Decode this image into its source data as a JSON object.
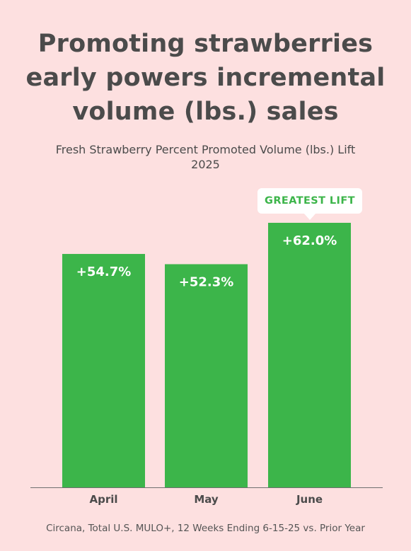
{
  "header": {
    "title_lines": [
      "Promoting strawberries",
      "early powers incremental",
      "volume (lbs.) sales"
    ],
    "subtitle_lines": [
      "Fresh Strawberry Percent Promoted Volume (lbs.) Lift",
      "2025"
    ]
  },
  "callout": {
    "label": "GREATEST LIFT"
  },
  "source": "Circana, Total U.S. MULO+, 12 Weeks Ending 6-15-25 vs. Prior Year",
  "colors": {
    "background": "#fde0e0",
    "bar": "#3cb54a",
    "bar_label": "#ffffff",
    "text": "#4b4b4b",
    "callout_bg": "#ffffff",
    "callout_text": "#3cb54a"
  },
  "chart_data": {
    "type": "bar",
    "title": "Fresh Strawberry Percent Promoted Volume (lbs.) Lift",
    "subtitle": "2025",
    "categories": [
      "April",
      "May",
      "June"
    ],
    "values": [
      54.7,
      52.3,
      62.0
    ],
    "value_labels": [
      "+54.7%",
      "+52.3%",
      "+62.0%"
    ],
    "xlabel": "",
    "ylabel": "",
    "ylim": [
      0,
      70
    ],
    "grid": false,
    "legend": "none",
    "highlight": {
      "category": "June",
      "label": "GREATEST LIFT"
    }
  }
}
